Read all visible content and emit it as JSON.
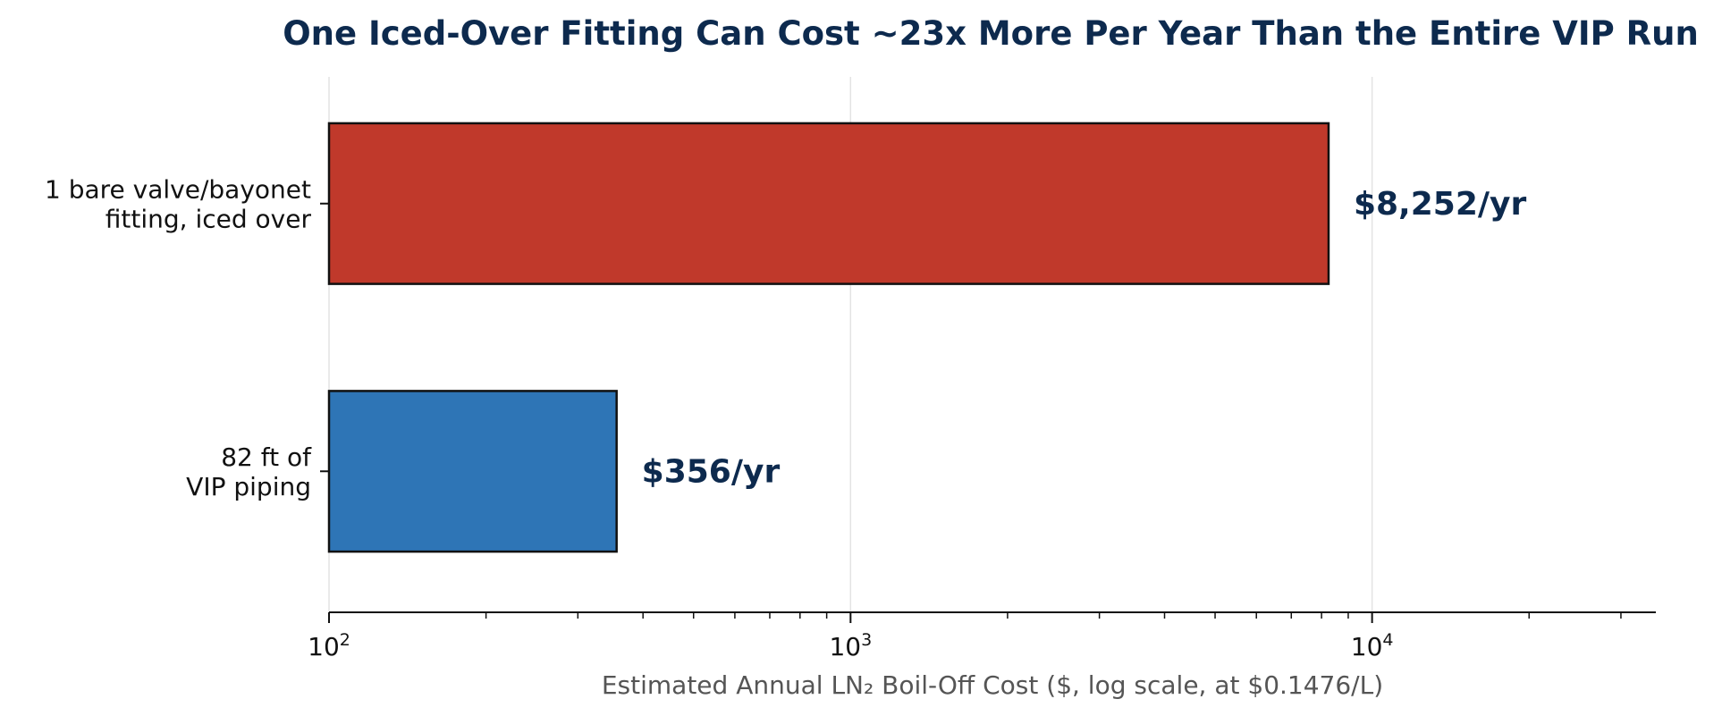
{
  "chart_data": {
    "type": "bar",
    "orientation": "horizontal",
    "title": "One Iced-Over Fitting Can Cost ~23x More Per Year Than the Entire VIP Run",
    "xlabel": "Estimated Annual LN₂ Boil-Off Cost ($, log scale, at $0.1476/L)",
    "ylabel": "",
    "xscale": "log",
    "xlim": [
      100,
      35000
    ],
    "grid": "x-major",
    "legend": "none",
    "xticks": [
      {
        "value": 100,
        "base": "10",
        "exp": "2"
      },
      {
        "value": 1000,
        "base": "10",
        "exp": "3"
      },
      {
        "value": 10000,
        "base": "10",
        "exp": "4"
      }
    ],
    "categories": [
      {
        "lines": [
          "1 bare valve/bayonet",
          "fitting, iced over"
        ]
      },
      {
        "lines": [
          "82 ft of",
          "VIP piping"
        ]
      }
    ],
    "values": [
      8252,
      356
    ],
    "value_labels": [
      "$8,252/yr",
      "$356/yr"
    ],
    "colors": [
      "#c0392b",
      "#2e75b6"
    ]
  }
}
